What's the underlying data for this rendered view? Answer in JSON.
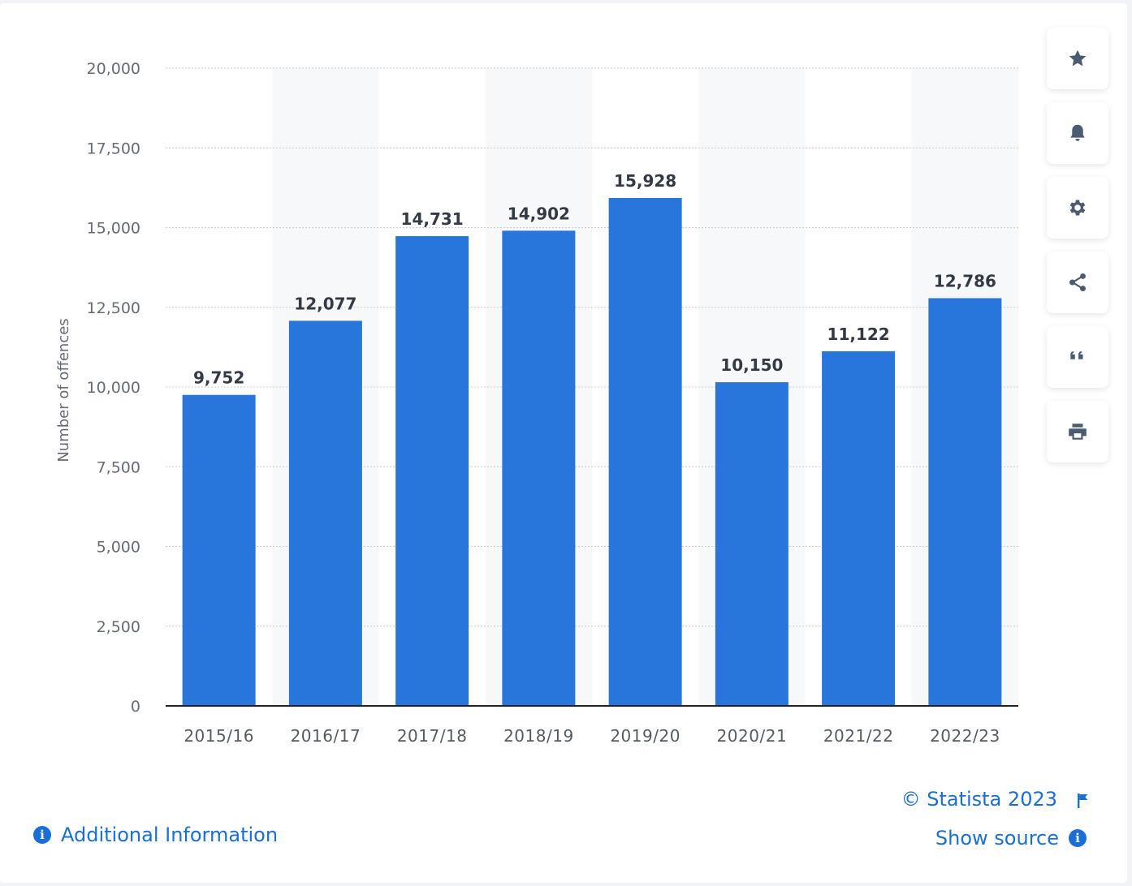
{
  "chart_data": {
    "type": "bar",
    "categories": [
      "2015/16",
      "2016/17",
      "2017/18",
      "2018/19",
      "2019/20",
      "2020/21",
      "2021/22",
      "2022/23"
    ],
    "values": [
      9752,
      12077,
      14731,
      14902,
      15928,
      10150,
      11122,
      12786
    ],
    "value_labels": [
      "9,752",
      "12,077",
      "14,731",
      "14,902",
      "15,928",
      "10,150",
      "11,122",
      "12,786"
    ],
    "ylabel": "Number of offences",
    "xlabel": "",
    "ylim": [
      0,
      20000
    ],
    "yticks": [
      0,
      2500,
      5000,
      7500,
      10000,
      12500,
      15000,
      17500,
      20000
    ],
    "ytick_labels": [
      "0",
      "2,500",
      "5,000",
      "7,500",
      "10,000",
      "12,500",
      "15,000",
      "17,500",
      "20,000"
    ],
    "grid": true,
    "bar_color": "#2875dc"
  },
  "toolbar": {
    "icons": [
      "star-icon",
      "bell-icon",
      "gear-icon",
      "share-icon",
      "quote-icon",
      "print-icon"
    ]
  },
  "footer": {
    "additional_info": "Additional Information",
    "copyright": "© Statista 2023",
    "show_source": "Show source"
  },
  "colors": {
    "accent": "#1a6fd6",
    "bar": "#2875dc"
  }
}
